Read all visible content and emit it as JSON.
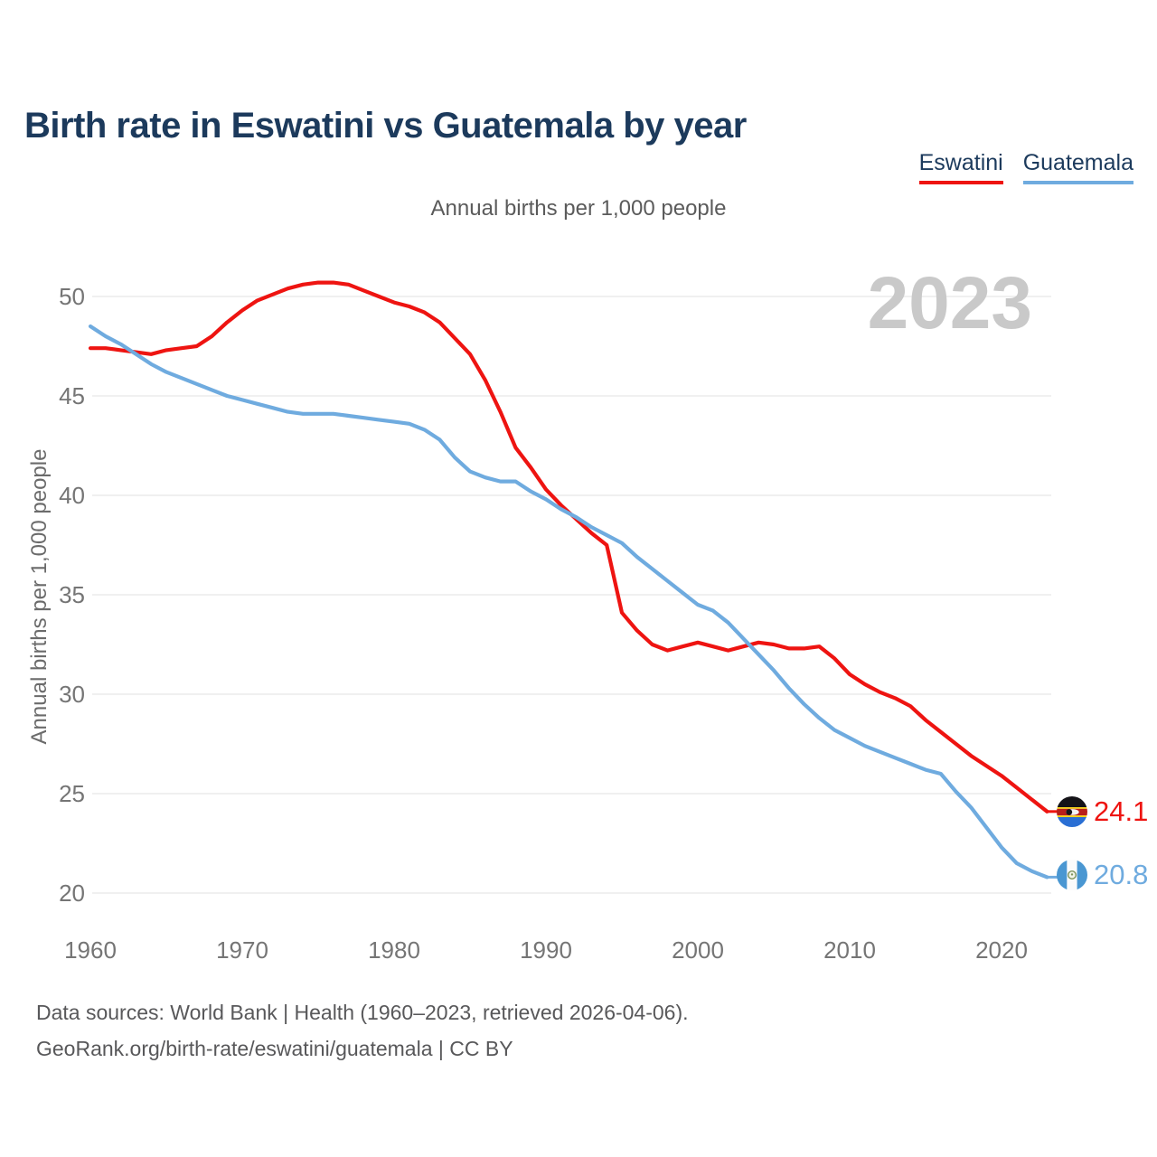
{
  "header": {
    "title": "Birth rate in Eswatini vs Guatemala by year",
    "subtitle": "Annual births per 1,000 people"
  },
  "legend": [
    {
      "label": "Eswatini",
      "color": "#ee1411"
    },
    {
      "label": "Guatemala",
      "color": "#6fabdf"
    }
  ],
  "axes": {
    "y_label": "Annual births per 1,000 people"
  },
  "end_labels": [
    {
      "series": "Eswatini",
      "value": "24.1",
      "flag": "eswatini-flag-icon",
      "color": "#ee1411"
    },
    {
      "series": "Guatemala",
      "value": "20.8",
      "flag": "guatemala-flag-icon",
      "color": "#6fabdf"
    }
  ],
  "footer": {
    "line1": "Data sources: World Bank | Health (1960–2023, retrieved 2026-04-06).",
    "line2": "GeoRank.org/birth-rate/eswatini/guatemala | CC BY"
  },
  "chart_data": {
    "type": "line",
    "title": "Birth rate in Eswatini vs Guatemala by year",
    "subtitle": "Annual births per 1,000 people",
    "ylabel": "Annual births per 1,000 people",
    "watermark": "2023",
    "grid": true,
    "legend_position": "top-right",
    "xlim": [
      1960,
      2023
    ],
    "ylim": [
      19,
      51.5
    ],
    "x_ticks": [
      1960,
      1970,
      1980,
      1990,
      2000,
      2010,
      2020
    ],
    "y_ticks": [
      20,
      25,
      30,
      35,
      40,
      45,
      50
    ],
    "x": [
      1960,
      1961,
      1962,
      1963,
      1964,
      1965,
      1966,
      1967,
      1968,
      1969,
      1970,
      1971,
      1972,
      1973,
      1974,
      1975,
      1976,
      1977,
      1978,
      1979,
      1980,
      1981,
      1982,
      1983,
      1984,
      1985,
      1986,
      1987,
      1988,
      1989,
      1990,
      1991,
      1992,
      1993,
      1994,
      1995,
      1996,
      1997,
      1998,
      1999,
      2000,
      2001,
      2002,
      2003,
      2004,
      2005,
      2006,
      2007,
      2008,
      2009,
      2010,
      2011,
      2012,
      2013,
      2014,
      2015,
      2016,
      2017,
      2018,
      2019,
      2020,
      2021,
      2022,
      2023
    ],
    "series": [
      {
        "name": "Eswatini",
        "color": "#ee1411",
        "end_value": 24.1,
        "values": [
          47.4,
          47.4,
          47.3,
          47.2,
          47.1,
          47.3,
          47.4,
          47.5,
          48.0,
          48.7,
          49.3,
          49.8,
          50.1,
          50.4,
          50.6,
          50.7,
          50.7,
          50.6,
          50.3,
          50.0,
          49.7,
          49.5,
          49.2,
          48.7,
          47.9,
          47.1,
          45.8,
          44.2,
          42.4,
          41.4,
          40.3,
          39.5,
          38.8,
          38.1,
          37.5,
          34.1,
          33.2,
          32.5,
          32.2,
          32.4,
          32.6,
          32.4,
          32.2,
          32.4,
          32.6,
          32.5,
          32.3,
          32.3,
          32.4,
          31.8,
          31.0,
          30.5,
          30.1,
          29.8,
          29.4,
          28.7,
          28.1,
          27.5,
          26.9,
          26.4,
          25.9,
          25.3,
          24.7,
          24.1
        ]
      },
      {
        "name": "Guatemala",
        "color": "#6fabdf",
        "end_value": 20.8,
        "values": [
          48.5,
          48.0,
          47.6,
          47.1,
          46.6,
          46.2,
          45.9,
          45.6,
          45.3,
          45.0,
          44.8,
          44.6,
          44.4,
          44.2,
          44.1,
          44.1,
          44.1,
          44.0,
          43.9,
          43.8,
          43.7,
          43.6,
          43.3,
          42.8,
          41.9,
          41.2,
          40.9,
          40.7,
          40.7,
          40.2,
          39.8,
          39.3,
          38.9,
          38.4,
          38.0,
          37.6,
          36.9,
          36.3,
          35.7,
          35.1,
          34.5,
          34.2,
          33.6,
          32.8,
          32.0,
          31.2,
          30.3,
          29.5,
          28.8,
          28.2,
          27.8,
          27.4,
          27.1,
          26.8,
          26.5,
          26.2,
          26.0,
          25.1,
          24.3,
          23.3,
          22.3,
          21.5,
          21.1,
          20.8
        ]
      }
    ]
  }
}
